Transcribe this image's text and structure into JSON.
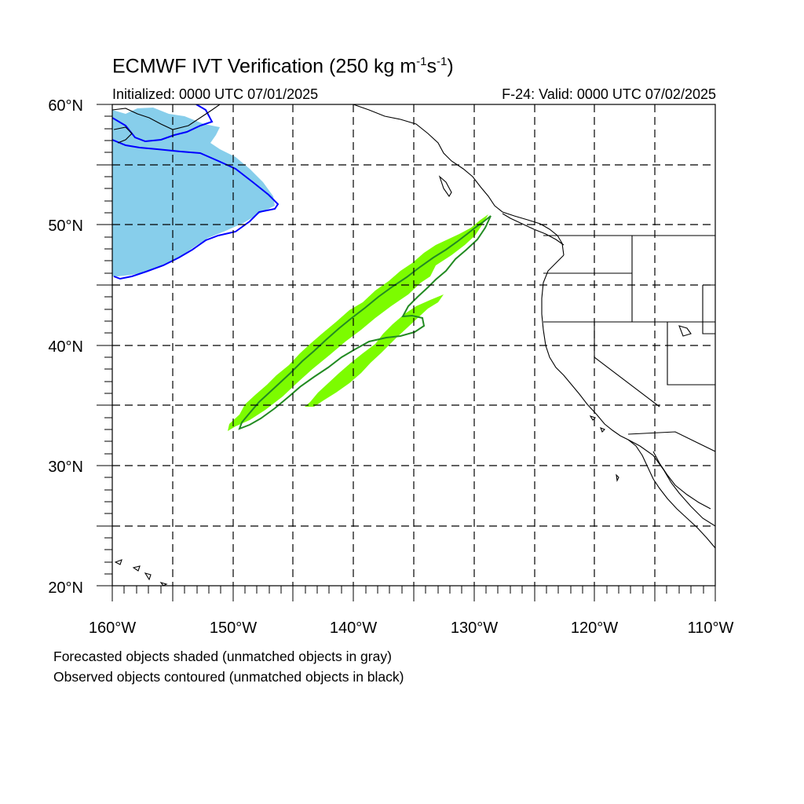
{
  "title": {
    "main": "ECMWF IVT Verification (250 kg m",
    "sup1": "-1",
    "mid": "s",
    "sup2": "-1",
    "end": ")"
  },
  "subtitle_left": "Initialized: 0000 UTC 07/01/2025",
  "subtitle_right": "F-24: Valid: 0000 UTC 07/02/2025",
  "footnotes": [
    "Forecasted objects shaded (unmatched objects in gray)",
    "Observed objects contoured (unmatched objects in black)"
  ],
  "map": {
    "extent": {
      "lon": [
        -160,
        -110
      ],
      "lat": [
        20,
        60
      ]
    },
    "lat_tick_labels": [
      "60°N",
      "50°N",
      "40°N",
      "30°N",
      "20°N"
    ],
    "lon_tick_labels": [
      "160°W",
      "150°W",
      "140°W",
      "130°W",
      "120°W",
      "110°W"
    ],
    "gridlines": "dashed every 5°",
    "colors": {
      "forecast_object_1": "#87ceeb",
      "observed_object_1": "#0000ff",
      "forecast_object_2": "#7cfc00",
      "observed_object_2": "#228b22",
      "coastline": "#000000"
    }
  }
}
